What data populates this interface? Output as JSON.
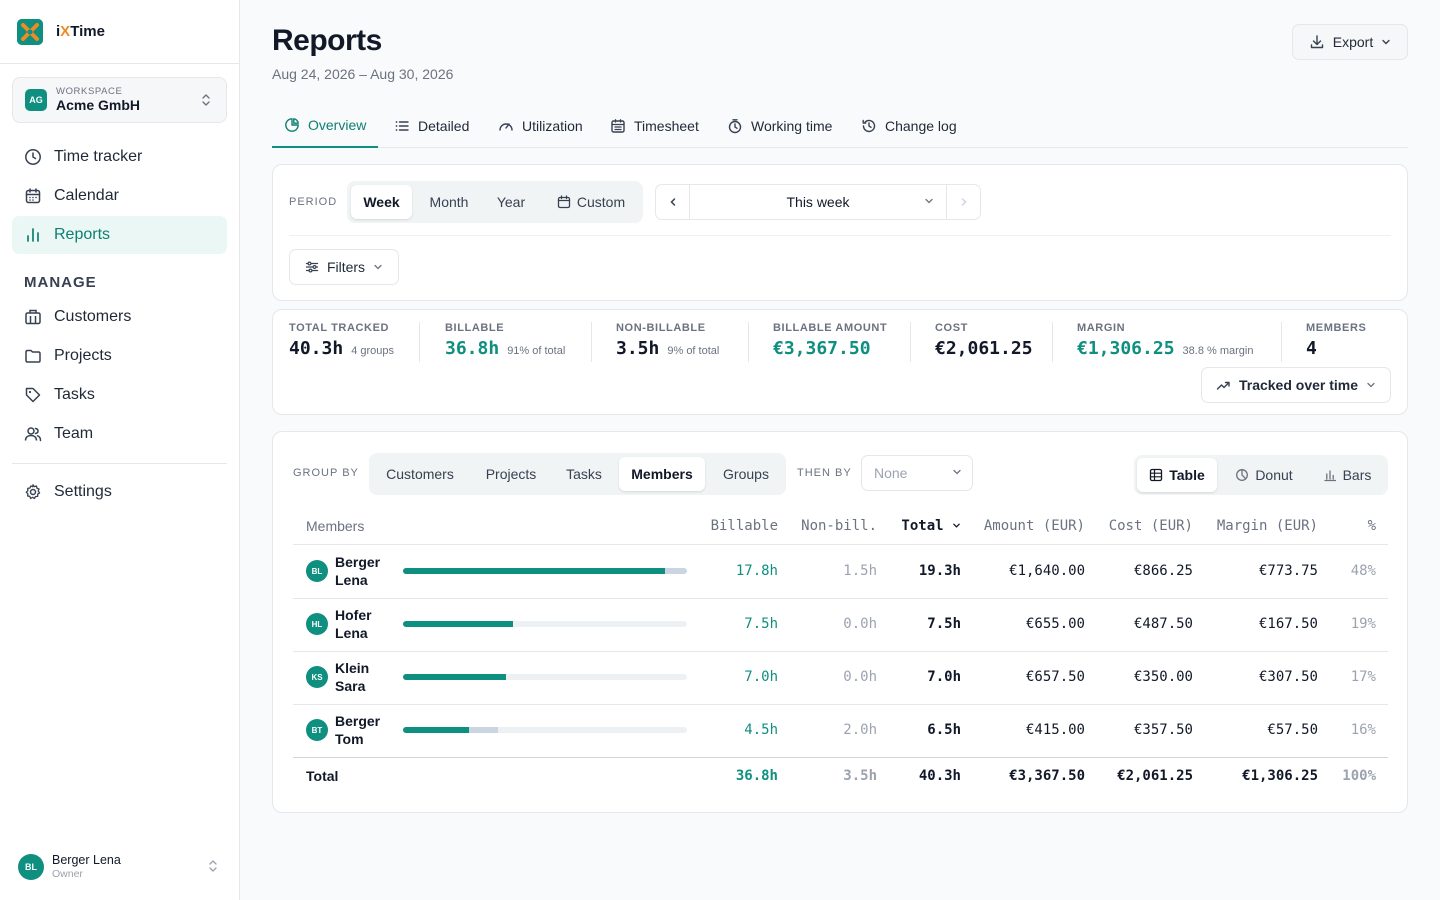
{
  "app": {
    "name_pre": "i",
    "name_x": "X",
    "name_post": "Time"
  },
  "workspace": {
    "label": "WORKSPACE",
    "initials": "AG",
    "name": "Acme GmbH"
  },
  "nav": {
    "items": [
      {
        "label": "Time tracker",
        "icon": "clock-icon"
      },
      {
        "label": "Calendar",
        "icon": "calendar-icon"
      },
      {
        "label": "Reports",
        "icon": "bar-chart-icon",
        "active": true
      }
    ],
    "manage_label": "MANAGE",
    "manage_items": [
      {
        "label": "Customers",
        "icon": "building-icon"
      },
      {
        "label": "Projects",
        "icon": "folder-icon"
      },
      {
        "label": "Tasks",
        "icon": "tag-icon"
      },
      {
        "label": "Team",
        "icon": "users-icon"
      }
    ],
    "settings": {
      "label": "Settings",
      "icon": "gear-icon"
    }
  },
  "user": {
    "initials": "BL",
    "name": "Berger Lena",
    "role": "Owner"
  },
  "page": {
    "title": "Reports",
    "date_range": "Aug 24, 2026 – Aug 30, 2026",
    "export_label": "Export"
  },
  "tabs": [
    {
      "label": "Overview",
      "active": true
    },
    {
      "label": "Detailed"
    },
    {
      "label": "Utilization"
    },
    {
      "label": "Timesheet"
    },
    {
      "label": "Working time"
    },
    {
      "label": "Change log"
    }
  ],
  "period": {
    "label": "PERIOD",
    "options": [
      "Week",
      "Month",
      "Year",
      "Custom"
    ],
    "selected": "Week",
    "current": "This week",
    "filters_label": "Filters"
  },
  "stats": {
    "total_tracked": {
      "label": "TOTAL TRACKED",
      "value": "40.3h",
      "sub": "4 groups"
    },
    "billable": {
      "label": "BILLABLE",
      "value": "36.8h",
      "sub": "91% of total"
    },
    "non_billable": {
      "label": "NON-BILLABLE",
      "value": "3.5h",
      "sub": "9% of total"
    },
    "billable_amount": {
      "label": "BILLABLE AMOUNT",
      "value": "€3,367.50"
    },
    "cost": {
      "label": "COST",
      "value": "€2,061.25"
    },
    "margin": {
      "label": "MARGIN",
      "value": "€1,306.25",
      "sub": "38.8 % margin"
    },
    "members": {
      "label": "MEMBERS",
      "value": "4"
    },
    "tracked_btn": "Tracked over time"
  },
  "grouping": {
    "group_by_label": "GROUP BY",
    "options": [
      "Customers",
      "Projects",
      "Tasks",
      "Members",
      "Groups"
    ],
    "selected": "Members",
    "then_by_label": "THEN BY",
    "then_by_placeholder": "None",
    "views": [
      "Table",
      "Donut",
      "Bars"
    ],
    "selected_view": "Table"
  },
  "table": {
    "headers": {
      "members": "Members",
      "billable": "Billable",
      "non_billable": "Non-bill.",
      "total": "Total",
      "amount": "Amount (EUR)",
      "cost": "Cost (EUR)",
      "margin": "Margin (EUR)",
      "pct": "%"
    },
    "rows": [
      {
        "initials": "BL",
        "last": "Berger",
        "first": "Lena",
        "billable": "17.8h",
        "non_billable": "1.5h",
        "total": "19.3h",
        "amount": "€1,640.00",
        "cost": "€866.25",
        "margin": "€773.75",
        "pct": "48%",
        "billable_h": 17.8,
        "non_billable_h": 1.5
      },
      {
        "initials": "HL",
        "last": "Hofer",
        "first": "Lena",
        "billable": "7.5h",
        "non_billable": "0.0h",
        "total": "7.5h",
        "amount": "€655.00",
        "cost": "€487.50",
        "margin": "€167.50",
        "pct": "19%",
        "billable_h": 7.5,
        "non_billable_h": 0.0
      },
      {
        "initials": "KS",
        "last": "Klein",
        "first": "Sara",
        "billable": "7.0h",
        "non_billable": "0.0h",
        "total": "7.0h",
        "amount": "€657.50",
        "cost": "€350.00",
        "margin": "€307.50",
        "pct": "17%",
        "billable_h": 7.0,
        "non_billable_h": 0.0
      },
      {
        "initials": "BT",
        "last": "Berger",
        "first": "Tom",
        "billable": "4.5h",
        "non_billable": "2.0h",
        "total": "6.5h",
        "amount": "€415.00",
        "cost": "€357.50",
        "margin": "€57.50",
        "pct": "16%",
        "billable_h": 4.5,
        "non_billable_h": 2.0
      }
    ],
    "totals": {
      "label": "Total",
      "billable": "36.8h",
      "non_billable": "3.5h",
      "total": "40.3h",
      "amount": "€3,367.50",
      "cost": "€2,061.25",
      "margin": "€1,306.25",
      "pct": "100%"
    }
  },
  "colors": {
    "accent": "#0f8f7f",
    "accent_bg": "#eaf7f4",
    "non_billable_bar": "#cbd5e1",
    "logo_x": "#f08a24"
  }
}
